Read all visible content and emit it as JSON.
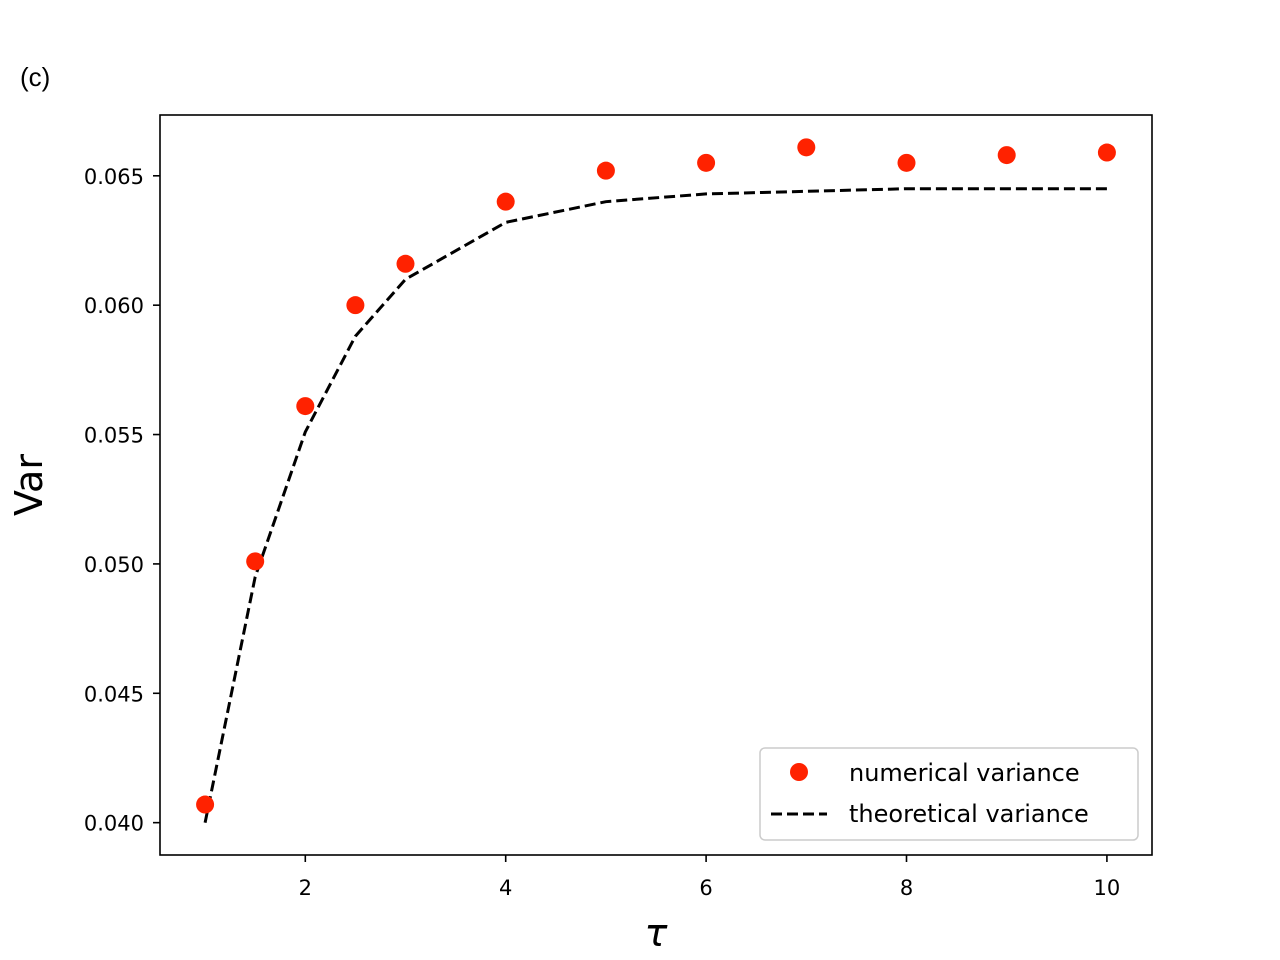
{
  "panel_label": "(c)",
  "colors": {
    "numerical": "#ff2200",
    "theoretical": "#000000",
    "axes": "#000000",
    "legend_border": "#cccccc"
  },
  "chart_data": {
    "type": "scatter",
    "xlabel": "τ",
    "ylabel": "Var",
    "xlim": [
      0.55,
      10.45
    ],
    "ylim": [
      0.03875,
      0.06735
    ],
    "xticks": [
      2,
      4,
      6,
      8,
      10
    ],
    "xtick_labels": [
      "2",
      "4",
      "6",
      "8",
      "10"
    ],
    "yticks": [
      0.04,
      0.045,
      0.05,
      0.055,
      0.06,
      0.065
    ],
    "ytick_labels": [
      "0.040",
      "0.045",
      "0.050",
      "0.055",
      "0.060",
      "0.065"
    ],
    "grid": false,
    "legend_position": "lower right",
    "series": [
      {
        "name": "numerical variance",
        "kind": "markers",
        "x": [
          1,
          1.5,
          2,
          2.5,
          3,
          4,
          5,
          6,
          7,
          8,
          9,
          10
        ],
        "y": [
          0.0407,
          0.0501,
          0.0561,
          0.06,
          0.0616,
          0.064,
          0.0652,
          0.0655,
          0.0661,
          0.0655,
          0.0658,
          0.0659
        ]
      },
      {
        "name": "theoretical variance",
        "kind": "dashed-line",
        "x": [
          1,
          1.5,
          2,
          2.5,
          3,
          4,
          5,
          6,
          7,
          8,
          9,
          10
        ],
        "y": [
          0.04,
          0.0495,
          0.0551,
          0.0588,
          0.061,
          0.0632,
          0.064,
          0.0643,
          0.0644,
          0.0645,
          0.0645,
          0.0645
        ]
      }
    ]
  }
}
